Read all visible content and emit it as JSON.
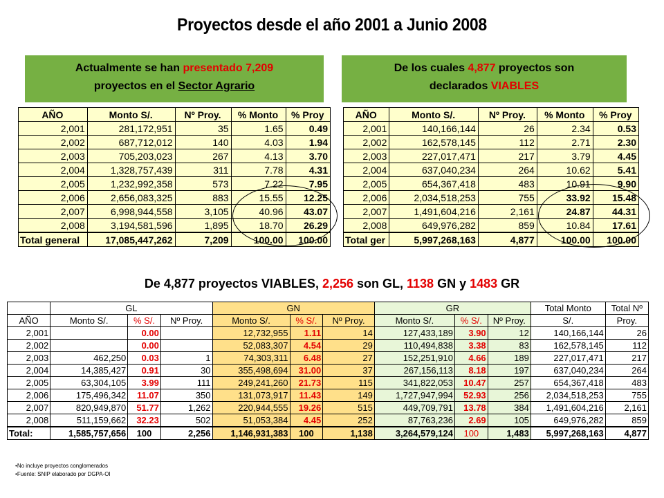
{
  "title": "Proyectos desde el año 2001 a Junio 2008",
  "box_left": {
    "pre": "Actualmente se han ",
    "red": "presentado 7,209",
    "line2_pre": "proyectos en el ",
    "line2_ul": "Sector Agrario"
  },
  "box_right": {
    "pre": "De los cuales ",
    "red": "4,877",
    "mid": " proyectos son",
    "line2_pre": "declarados ",
    "line2_red": "VIABLES"
  },
  "table_presentados": {
    "headers": [
      "AÑO",
      "Monto S/.",
      "Nº Proy.",
      "% Monto",
      "% Proy"
    ],
    "rows": [
      [
        "2,001",
        "281,172,951",
        "35",
        "1.65",
        "0.49"
      ],
      [
        "2,002",
        "687,712,012",
        "140",
        "4.03",
        "1.94"
      ],
      [
        "2,003",
        "705,203,023",
        "267",
        "4.13",
        "3.70"
      ],
      [
        "2,004",
        "1,328,757,439",
        "311",
        "7.78",
        "4.31"
      ],
      [
        "2,005",
        "1,232,992,358",
        "573",
        "7.22",
        "7.95"
      ],
      [
        "2,006",
        "2,656,083,325",
        "883",
        "15.55",
        "12.25"
      ],
      [
        "2,007",
        "6,998,944,558",
        "3,105",
        "40.96",
        "43.07"
      ],
      [
        "2,008",
        "3,194,581,596",
        "1,895",
        "18.70",
        "26.29"
      ]
    ],
    "total": [
      "Total general",
      "17,085,447,262",
      "7,209",
      "100.00",
      "100.00"
    ]
  },
  "table_viables": {
    "headers": [
      "AÑO",
      "Monto S/.",
      "Nº Proy.",
      "% Monto",
      "% Proy"
    ],
    "rows": [
      [
        "2,001",
        "140,166,144",
        "26",
        "2.34",
        "0.53"
      ],
      [
        "2,002",
        "162,578,145",
        "112",
        "2.71",
        "2.30"
      ],
      [
        "2,003",
        "227,017,471",
        "217",
        "3.79",
        "4.45"
      ],
      [
        "2,004",
        "637,040,234",
        "264",
        "10.62",
        "5.41"
      ],
      [
        "2,005",
        "654,367,418",
        "483",
        "10.91",
        "9.90"
      ],
      [
        "2,006",
        "2,034,518,253",
        "755",
        "33.92",
        "15.48"
      ],
      [
        "2,007",
        "1,491,604,216",
        "2,161",
        "24.87",
        "44.31"
      ],
      [
        "2,008",
        "649,976,282",
        "859",
        "10.84",
        "17.61"
      ]
    ],
    "total": [
      "Total ger",
      "5,997,268,163",
      "4,877",
      "100.00",
      "100.00"
    ]
  },
  "subtitle": {
    "p1": "De 4,877 proyectos  VIABLES, ",
    "gl": "2,256",
    "p2": " son GL, ",
    "gn": "1138",
    "p3": " GN y ",
    "gr": "1483",
    "p4": " GR"
  },
  "big_table": {
    "groups": {
      "gl": "GL",
      "gn": "GN",
      "gr": "GR",
      "tm": "Total Monto",
      "tn": "Total Nº"
    },
    "headers": [
      "AÑO",
      "Monto S/.",
      "% S/.",
      "Nº Proy.",
      "Monto S/.",
      "% S/.",
      "Nº Proy.",
      "Monto S/.",
      "% S/.",
      "Nº Proy.",
      "S/.",
      "Proy."
    ],
    "rows": [
      [
        "2,001",
        "",
        "0.00",
        "",
        "12,732,955",
        "1.11",
        "14",
        "127,433,189",
        "3.90",
        "12",
        "140,166,144",
        "26"
      ],
      [
        "2,002",
        "",
        "0.00",
        "",
        "52,083,307",
        "4.54",
        "29",
        "110,494,838",
        "3.38",
        "83",
        "162,578,145",
        "112"
      ],
      [
        "2,003",
        "462,250",
        "0.03",
        "1",
        "74,303,311",
        "6.48",
        "27",
        "152,251,910",
        "4.66",
        "189",
        "227,017,471",
        "217"
      ],
      [
        "2,004",
        "14,385,427",
        "0.91",
        "30",
        "355,498,694",
        "31.00",
        "37",
        "267,156,113",
        "8.18",
        "197",
        "637,040,234",
        "264"
      ],
      [
        "2,005",
        "63,304,105",
        "3.99",
        "111",
        "249,241,260",
        "21.73",
        "115",
        "341,822,053",
        "10.47",
        "257",
        "654,367,418",
        "483"
      ],
      [
        "2,006",
        "175,496,342",
        "11.07",
        "350",
        "131,073,917",
        "11.43",
        "149",
        "1,727,947,994",
        "52.93",
        "256",
        "2,034,518,253",
        "755"
      ],
      [
        "2,007",
        "820,949,870",
        "51.77",
        "1,262",
        "220,944,555",
        "19.26",
        "515",
        "449,709,791",
        "13.78",
        "384",
        "1,491,604,216",
        "2,161"
      ],
      [
        "2,008",
        "511,159,662",
        "32.23",
        "502",
        "51,053,384",
        "4.45",
        "252",
        "87,763,236",
        "2.69",
        "105",
        "649,976,282",
        "859"
      ]
    ],
    "total": [
      "Total:",
      "1,585,757,656",
      "100",
      "2,256",
      "1,146,931,383",
      "100",
      "1,138",
      "3,264,579,124",
      "100",
      "1,483",
      "5,997,268,163",
      "4,877"
    ]
  },
  "notes": [
    "No incluye proyectos conglomerados",
    "Fuente: SNIP elaborado por DGPA-OI"
  ]
}
